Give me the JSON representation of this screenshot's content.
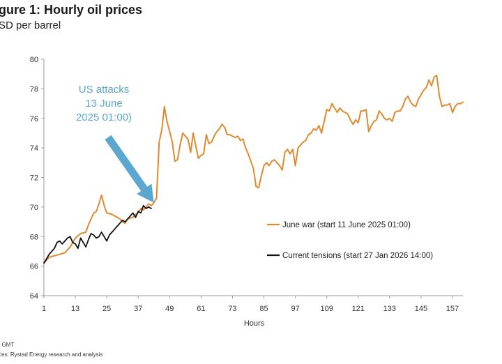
{
  "title": "gure 1: Hourly oil prices",
  "subtitle": "SD per barrel",
  "source": ": GMT",
  "sources": "ces: Rystad Energy research and analysis",
  "chart_data": {
    "type": "line",
    "xlabel": "Hours",
    "ylabel": "",
    "xlim": [
      1,
      161
    ],
    "ylim": [
      64,
      80
    ],
    "x_ticks": [
      1,
      13,
      25,
      37,
      49,
      61,
      73,
      85,
      97,
      109,
      121,
      133,
      145,
      157
    ],
    "y_ticks": [
      64,
      66,
      68,
      70,
      72,
      74,
      76,
      78,
      80
    ],
    "grid": false,
    "legend_position": "right-middle",
    "annotation": {
      "lines": [
        "US attacks",
        "13 June",
        "2025 01:00)"
      ],
      "color": "#5ba7cf",
      "points_to": [
        44,
        70.3
      ]
    },
    "series": [
      {
        "name": "June war (start 11 June 2025 01:00)",
        "color": "#e08a2e",
        "points": [
          [
            1,
            66.2
          ],
          [
            3,
            66.6
          ],
          [
            5,
            66.7
          ],
          [
            7,
            66.8
          ],
          [
            9,
            66.9
          ],
          [
            10,
            67.1
          ],
          [
            11,
            67.3
          ],
          [
            12,
            67.6
          ],
          [
            13,
            67.9
          ],
          [
            15,
            68.2
          ],
          [
            17,
            68.3
          ],
          [
            18,
            68.8
          ],
          [
            19,
            69.2
          ],
          [
            20,
            69.6
          ],
          [
            21,
            69.7
          ],
          [
            22,
            70.2
          ],
          [
            23,
            70.8
          ],
          [
            24,
            70.1
          ],
          [
            25,
            69.6
          ],
          [
            27,
            69.5
          ],
          [
            28,
            69.4
          ],
          [
            29,
            69.3
          ],
          [
            30,
            69.2
          ],
          [
            31,
            69.0
          ],
          [
            32,
            68.9
          ],
          [
            33,
            69.2
          ],
          [
            35,
            69.3
          ],
          [
            36,
            69.5
          ],
          [
            37,
            69.6
          ],
          [
            38,
            69.9
          ],
          [
            39,
            69.8
          ],
          [
            40,
            70.0
          ],
          [
            41,
            70.2
          ],
          [
            42,
            70.1
          ],
          [
            43,
            70.3
          ],
          [
            44,
            70.6
          ],
          [
            45,
            74.4
          ],
          [
            46,
            75.2
          ],
          [
            47,
            76.8
          ],
          [
            48,
            75.8
          ],
          [
            49,
            75.1
          ],
          [
            50,
            74.4
          ],
          [
            51,
            73.1
          ],
          [
            52,
            73.2
          ],
          [
            53,
            74.2
          ],
          [
            54,
            75.0
          ],
          [
            55,
            74.8
          ],
          [
            56,
            74.6
          ],
          [
            57,
            73.7
          ],
          [
            58,
            75.0
          ],
          [
            59,
            74.1
          ],
          [
            60,
            73.3
          ],
          [
            61,
            73.5
          ],
          [
            62,
            73.6
          ],
          [
            63,
            74.9
          ],
          [
            64,
            74.3
          ],
          [
            65,
            74.4
          ],
          [
            66,
            74.8
          ],
          [
            67,
            75.1
          ],
          [
            68,
            75.3
          ],
          [
            69,
            75.6
          ],
          [
            70,
            75.4
          ],
          [
            71,
            74.9
          ],
          [
            72,
            74.9
          ],
          [
            73,
            74.8
          ],
          [
            74,
            74.7
          ],
          [
            75,
            74.8
          ],
          [
            76,
            74.5
          ],
          [
            77,
            74.6
          ],
          [
            78,
            74.0
          ],
          [
            79,
            73.6
          ],
          [
            80,
            73.1
          ],
          [
            81,
            72.6
          ],
          [
            82,
            71.4
          ],
          [
            83,
            71.3
          ],
          [
            84,
            72.1
          ],
          [
            85,
            72.8
          ],
          [
            86,
            73.0
          ],
          [
            87,
            72.8
          ],
          [
            88,
            73.1
          ],
          [
            89,
            73.2
          ],
          [
            90,
            73.0
          ],
          [
            91,
            72.8
          ],
          [
            92,
            72.5
          ],
          [
            93,
            73.7
          ],
          [
            94,
            73.9
          ],
          [
            95,
            73.6
          ],
          [
            96,
            73.9
          ],
          [
            97,
            72.8
          ],
          [
            98,
            74.0
          ],
          [
            99,
            74.2
          ],
          [
            100,
            74.4
          ],
          [
            101,
            74.5
          ],
          [
            102,
            74.9
          ],
          [
            103,
            75.0
          ],
          [
            104,
            75.3
          ],
          [
            105,
            75.2
          ],
          [
            106,
            75.5
          ],
          [
            107,
            75.0
          ],
          [
            108,
            75.8
          ],
          [
            109,
            76.6
          ],
          [
            110,
            76.5
          ],
          [
            111,
            77.0
          ],
          [
            112,
            76.7
          ],
          [
            113,
            76.4
          ],
          [
            114,
            76.7
          ],
          [
            115,
            76.5
          ],
          [
            116,
            76.4
          ],
          [
            117,
            76.3
          ],
          [
            118,
            75.9
          ],
          [
            119,
            75.6
          ],
          [
            120,
            75.9
          ],
          [
            121,
            75.7
          ],
          [
            122,
            76.5
          ],
          [
            123,
            76.5
          ],
          [
            124,
            76.6
          ],
          [
            125,
            75.1
          ],
          [
            126,
            75.5
          ],
          [
            127,
            75.8
          ],
          [
            128,
            75.9
          ],
          [
            129,
            76.5
          ],
          [
            130,
            76.3
          ],
          [
            131,
            76.0
          ],
          [
            132,
            75.9
          ],
          [
            133,
            76.0
          ],
          [
            134,
            75.8
          ],
          [
            135,
            76.4
          ],
          [
            136,
            76.5
          ],
          [
            137,
            76.5
          ],
          [
            138,
            76.8
          ],
          [
            139,
            77.3
          ],
          [
            140,
            77.5
          ],
          [
            141,
            77.1
          ],
          [
            142,
            76.9
          ],
          [
            143,
            76.8
          ],
          [
            144,
            77.3
          ],
          [
            145,
            77.6
          ],
          [
            146,
            77.9
          ],
          [
            147,
            78.1
          ],
          [
            148,
            78.6
          ],
          [
            149,
            78.2
          ],
          [
            150,
            78.8
          ],
          [
            151,
            78.9
          ],
          [
            152,
            77.5
          ],
          [
            153,
            76.8
          ],
          [
            154,
            76.9
          ],
          [
            155,
            76.9
          ],
          [
            156,
            77.0
          ],
          [
            157,
            76.4
          ],
          [
            158,
            76.8
          ],
          [
            159,
            77.0
          ],
          [
            160,
            77.0
          ],
          [
            161,
            77.1
          ]
        ]
      },
      {
        "name": "Current tensions (start 27 Jan 2026 14:00)",
        "color": "#111111",
        "points": [
          [
            1,
            66.2
          ],
          [
            2,
            66.5
          ],
          [
            3,
            66.8
          ],
          [
            4,
            67.0
          ],
          [
            5,
            67.2
          ],
          [
            6,
            67.6
          ],
          [
            7,
            67.7
          ],
          [
            8,
            67.5
          ],
          [
            9,
            67.7
          ],
          [
            10,
            67.9
          ],
          [
            11,
            68.0
          ],
          [
            12,
            67.6
          ],
          [
            13,
            67.5
          ],
          [
            14,
            67.2
          ],
          [
            15,
            67.9
          ],
          [
            16,
            67.6
          ],
          [
            17,
            67.3
          ],
          [
            18,
            67.8
          ],
          [
            19,
            68.2
          ],
          [
            20,
            68.1
          ],
          [
            21,
            67.9
          ],
          [
            22,
            68.0
          ],
          [
            23,
            68.3
          ],
          [
            24,
            68.0
          ],
          [
            25,
            67.7
          ],
          [
            26,
            68.1
          ],
          [
            27,
            68.3
          ],
          [
            28,
            68.5
          ],
          [
            29,
            68.7
          ],
          [
            30,
            68.9
          ],
          [
            31,
            69.1
          ],
          [
            32,
            69.0
          ],
          [
            33,
            69.2
          ],
          [
            34,
            69.4
          ],
          [
            35,
            69.6
          ],
          [
            36,
            69.3
          ],
          [
            37,
            69.7
          ],
          [
            38,
            69.6
          ],
          [
            39,
            70.1
          ],
          [
            40,
            69.9
          ],
          [
            41,
            70.0
          ],
          [
            42,
            69.9
          ]
        ]
      }
    ]
  }
}
